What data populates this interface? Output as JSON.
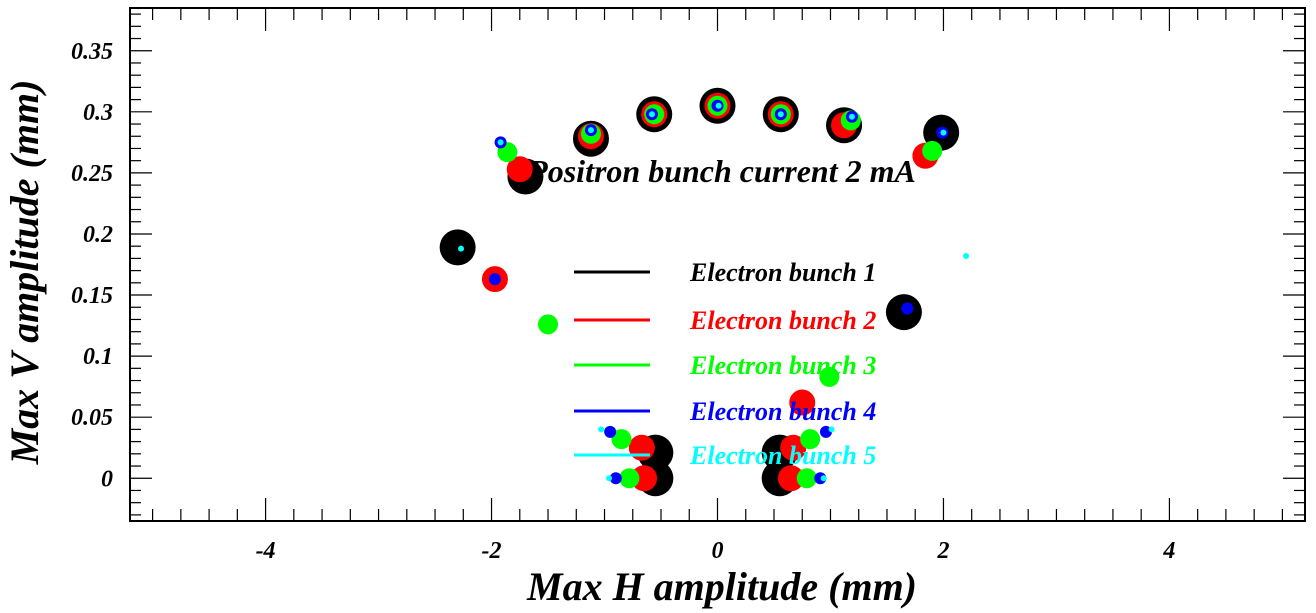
{
  "chart_data": {
    "type": "scatter",
    "title": "Positron bunch current  2 mA",
    "xlabel": "Max H amplitude (mm)",
    "ylabel": "Max V amplitude (mm)",
    "xlim": [
      -5.2,
      5.2
    ],
    "ylim": [
      -0.035,
      0.385
    ],
    "x_ticks": [
      -4,
      -2,
      0,
      2,
      4
    ],
    "y_ticks": [
      0,
      0.05,
      0.1,
      0.15,
      0.2,
      0.25,
      0.3,
      0.35
    ],
    "x_tick_labels": [
      "-4",
      "-2",
      "0",
      "2",
      "4"
    ],
    "y_tick_labels": [
      "0",
      "0.05",
      "0.1",
      "0.15",
      "0.2",
      "0.25",
      "0.3",
      "0.35"
    ],
    "grid": false,
    "legend_position": "center",
    "series": [
      {
        "name": "Electron bunch 1",
        "color": "#000000",
        "points": [
          [
            -2.3,
            0.189
          ],
          [
            -1.7,
            0.247
          ],
          [
            -1.12,
            0.278
          ],
          [
            -0.56,
            0.298
          ],
          [
            0.0,
            0.305
          ],
          [
            0.56,
            0.298
          ],
          [
            1.12,
            0.289
          ],
          [
            1.98,
            0.283
          ],
          [
            1.65,
            0.136
          ],
          [
            -0.55,
            0.021
          ],
          [
            -0.55,
            0.0
          ],
          [
            0.55,
            0.021
          ],
          [
            0.55,
            0.0
          ]
        ]
      },
      {
        "name": "Electron bunch 2",
        "color": "#ff0000",
        "points": [
          [
            -1.97,
            0.163
          ],
          [
            -1.75,
            0.253
          ],
          [
            -1.12,
            0.28
          ],
          [
            -0.56,
            0.298
          ],
          [
            0.0,
            0.305
          ],
          [
            0.56,
            0.298
          ],
          [
            1.12,
            0.289
          ],
          [
            1.84,
            0.264
          ],
          [
            0.75,
            0.062
          ],
          [
            -0.67,
            0.025
          ],
          [
            -0.65,
            0.0
          ],
          [
            0.67,
            0.025
          ],
          [
            0.65,
            0.0
          ]
        ]
      },
      {
        "name": "Electron bunch 3",
        "color": "#00ff00",
        "points": [
          [
            -1.5,
            0.126
          ],
          [
            -1.86,
            0.267
          ],
          [
            -1.12,
            0.282
          ],
          [
            -0.56,
            0.298
          ],
          [
            0.0,
            0.305
          ],
          [
            0.56,
            0.298
          ],
          [
            1.18,
            0.293
          ],
          [
            1.9,
            0.268
          ],
          [
            0.99,
            0.083
          ],
          [
            -0.85,
            0.032
          ],
          [
            -0.78,
            0.0
          ],
          [
            0.82,
            0.032
          ],
          [
            0.79,
            0.0
          ]
        ]
      },
      {
        "name": "Electron bunch 4",
        "color": "#0000ff",
        "points": [
          [
            -1.97,
            0.163
          ],
          [
            -1.92,
            0.275
          ],
          [
            -1.12,
            0.285
          ],
          [
            -0.58,
            0.298
          ],
          [
            0.0,
            0.305
          ],
          [
            0.56,
            0.298
          ],
          [
            1.19,
            0.296
          ],
          [
            1.99,
            0.283
          ],
          [
            1.68,
            0.139
          ],
          [
            -0.95,
            0.038
          ],
          [
            -0.9,
            0.0
          ],
          [
            0.96,
            0.038
          ],
          [
            0.91,
            0.0
          ]
        ]
      },
      {
        "name": "Electron bunch 5",
        "color": "#00ffff",
        "points": [
          [
            -2.27,
            0.188
          ],
          [
            -1.92,
            0.275
          ],
          [
            -1.12,
            0.285
          ],
          [
            -0.58,
            0.298
          ],
          [
            0.01,
            0.305
          ],
          [
            0.56,
            0.298
          ],
          [
            1.19,
            0.296
          ],
          [
            2.0,
            0.283
          ],
          [
            2.2,
            0.182
          ],
          [
            -1.03,
            0.04
          ],
          [
            -0.96,
            0.0
          ],
          [
            1.01,
            0.04
          ],
          [
            0.94,
            0.0
          ]
        ]
      }
    ]
  }
}
